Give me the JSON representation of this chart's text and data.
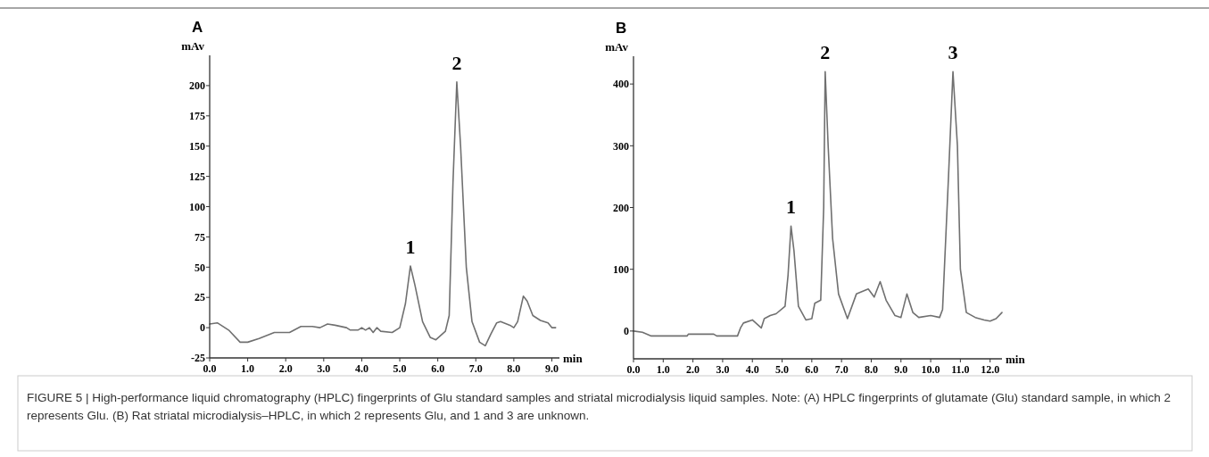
{
  "chart_data": [
    {
      "type": "line",
      "title": "A",
      "ylabel": "mAv",
      "xlabel": "min",
      "marker": "none",
      "line_style": "solid",
      "grid": false,
      "xlim": [
        0,
        9.2
      ],
      "ylim": [
        -25,
        225
      ],
      "xticks": [
        {
          "value": 0,
          "label": "0.0"
        },
        {
          "value": 1,
          "label": "1.0"
        },
        {
          "value": 2,
          "label": "2.0"
        },
        {
          "value": 3,
          "label": "3.0"
        },
        {
          "value": 4,
          "label": "4.0"
        },
        {
          "value": 5,
          "label": "5.0"
        },
        {
          "value": 6,
          "label": "6.0"
        },
        {
          "value": 7,
          "label": "7.0"
        },
        {
          "value": 8,
          "label": "8.0"
        },
        {
          "value": 9,
          "label": "9.0"
        }
      ],
      "yticks": [
        -25,
        0,
        25,
        50,
        75,
        100,
        125,
        150,
        175,
        200
      ],
      "series": [
        {
          "color": "#707070",
          "x": [
            0,
            0.2,
            0.5,
            0.8,
            1.0,
            1.3,
            1.7,
            2.1,
            2.4,
            2.7,
            2.9,
            3.1,
            3.3,
            3.6,
            3.7,
            3.9,
            4.0,
            4.1,
            4.2,
            4.3,
            4.4,
            4.5,
            4.8,
            5.0,
            5.15,
            5.28,
            5.4,
            5.6,
            5.8,
            5.95,
            6.2,
            6.3,
            6.4,
            6.5,
            6.6,
            6.75,
            6.9,
            7.1,
            7.25,
            7.4,
            7.55,
            7.65,
            7.9,
            8.0,
            8.1,
            8.25,
            8.35,
            8.5,
            8.7,
            8.9,
            9.0,
            9.1
          ],
          "values": [
            3,
            4,
            -2,
            -12,
            -12,
            -9,
            -4,
            -4,
            1,
            1,
            0,
            3,
            2,
            0,
            -2,
            -2,
            0,
            -2,
            0,
            -4,
            0,
            -3,
            -4,
            0,
            20,
            51,
            35,
            5,
            -8,
            -10,
            -3,
            10,
            120,
            203,
            150,
            50,
            5,
            -12,
            -15,
            -5,
            4,
            5,
            2,
            0,
            5,
            26,
            22,
            10,
            6,
            4,
            0,
            0
          ]
        }
      ],
      "annotations": [
        {
          "text": "1",
          "x": 5.28,
          "y": 51
        },
        {
          "text": "2",
          "x": 6.5,
          "y": 203
        }
      ]
    },
    {
      "type": "line",
      "title": "B",
      "ylabel": "mAv",
      "xlabel": "min",
      "marker": "none",
      "line_style": "solid",
      "grid": false,
      "xlim": [
        0,
        12.4
      ],
      "ylim": [
        -45,
        445
      ],
      "xticks": [
        {
          "value": 0,
          "label": "0.0"
        },
        {
          "value": 1,
          "label": "1.0"
        },
        {
          "value": 2,
          "label": "2.0"
        },
        {
          "value": 3,
          "label": "3.0"
        },
        {
          "value": 4,
          "label": "4.0"
        },
        {
          "value": 5,
          "label": "5.0"
        },
        {
          "value": 6,
          "label": "6.0"
        },
        {
          "value": 7,
          "label": "7.0"
        },
        {
          "value": 8,
          "label": "8.0"
        },
        {
          "value": 9,
          "label": "9.0"
        },
        {
          "value": 10,
          "label": "10.0"
        },
        {
          "value": 11,
          "label": "11.0"
        },
        {
          "value": 12,
          "label": "12.0"
        }
      ],
      "yticks": [
        0,
        100,
        200,
        300,
        400
      ],
      "series": [
        {
          "color": "#707070",
          "x": [
            0,
            0.3,
            0.6,
            1.0,
            1.8,
            1.85,
            2.7,
            2.8,
            3.5,
            3.6,
            3.7,
            4.0,
            4.3,
            4.4,
            4.6,
            4.8,
            5.1,
            5.2,
            5.3,
            5.4,
            5.55,
            5.8,
            6.0,
            6.1,
            6.3,
            6.4,
            6.45,
            6.55,
            6.7,
            6.9,
            7.2,
            7.5,
            7.9,
            8.1,
            8.3,
            8.5,
            8.8,
            9.0,
            9.2,
            9.4,
            9.6,
            10.0,
            10.3,
            10.4,
            10.6,
            10.75,
            10.9,
            11.0,
            11.2,
            11.5,
            11.8,
            12.0,
            12.2,
            12.4
          ],
          "values": [
            0,
            -2,
            -8,
            -8,
            -8,
            -5,
            -5,
            -8,
            -8,
            5,
            13,
            18,
            5,
            20,
            25,
            28,
            40,
            90,
            170,
            130,
            40,
            18,
            20,
            45,
            50,
            200,
            420,
            300,
            150,
            60,
            20,
            60,
            68,
            55,
            80,
            50,
            25,
            22,
            60,
            30,
            22,
            25,
            22,
            35,
            250,
            420,
            300,
            100,
            30,
            22,
            18,
            16,
            20,
            30
          ]
        }
      ],
      "annotations": [
        {
          "text": "1",
          "x": 5.3,
          "y": 170
        },
        {
          "text": "2",
          "x": 6.45,
          "y": 420
        },
        {
          "text": "3",
          "x": 10.75,
          "y": 420
        },
        "FIGURE 5 | High-performance liquid chromatography (HPLC) fingerprints of Glu standard samples and striatal microdialysis liquid samples. Note: (A) HPLC fingerprints of glutamate (Glu) standard sample, in which 2 represents Glu. (B) Rat striatal microdialysis–HPLC, in which 2 represents Glu, and 1 and 3 are unknown."
      ]
    }
  ]
}
